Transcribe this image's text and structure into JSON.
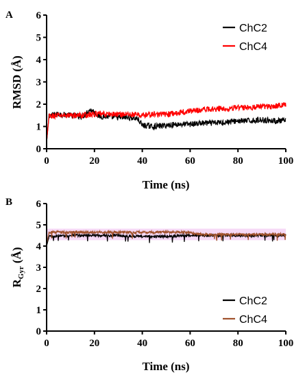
{
  "chart_data": [
    {
      "panel": "A",
      "type": "line",
      "xlabel": "Time (ns)",
      "ylabel": "RMSD (Å)",
      "xlim": [
        0,
        100
      ],
      "ylim": [
        0,
        6
      ],
      "xticks": [
        "0",
        "20",
        "40",
        "60",
        "80",
        "100"
      ],
      "yticks": [
        "0",
        "1",
        "2",
        "3",
        "4",
        "5",
        "6"
      ],
      "legend_position": "top-right",
      "series": [
        {
          "name": "ChC2",
          "color": "#000000",
          "x": [
            0,
            1,
            5,
            10,
            15,
            18,
            20,
            22,
            25,
            30,
            35,
            38,
            40,
            45,
            50,
            55,
            60,
            65,
            70,
            75,
            80,
            85,
            90,
            95,
            100
          ],
          "y": [
            0.3,
            1.5,
            1.55,
            1.5,
            1.45,
            1.75,
            1.65,
            1.45,
            1.45,
            1.4,
            1.4,
            1.35,
            1.05,
            1.0,
            1.05,
            1.1,
            1.1,
            1.15,
            1.15,
            1.2,
            1.25,
            1.25,
            1.3,
            1.25,
            1.25
          ]
        },
        {
          "name": "ChC4",
          "color": "#ff0000",
          "x": [
            0,
            1,
            5,
            10,
            15,
            20,
            25,
            30,
            35,
            40,
            45,
            50,
            55,
            60,
            65,
            70,
            75,
            80,
            85,
            90,
            95,
            100
          ],
          "y": [
            0.3,
            1.45,
            1.5,
            1.5,
            1.5,
            1.55,
            1.55,
            1.55,
            1.55,
            1.5,
            1.55,
            1.55,
            1.6,
            1.7,
            1.75,
            1.8,
            1.8,
            1.85,
            1.85,
            1.9,
            1.9,
            2.0
          ]
        }
      ]
    },
    {
      "panel": "B",
      "type": "line",
      "xlabel": "Time (ns)",
      "ylabel": "R",
      "ylabel_subscript": "Gyr",
      "ylabel_unit": " (Å)",
      "xlim": [
        0,
        100
      ],
      "ylim": [
        0,
        6
      ],
      "xticks": [
        "0",
        "20",
        "40",
        "60",
        "80",
        "100"
      ],
      "yticks": [
        "0",
        "1",
        "2",
        "3",
        "4",
        "5",
        "6"
      ],
      "legend_position": "center-right",
      "series": [
        {
          "name": "ChC2",
          "color": "#000000",
          "x": [
            0,
            1,
            10,
            20,
            30,
            40,
            50,
            60,
            63,
            70,
            80,
            90,
            100
          ],
          "y": [
            4.0,
            4.45,
            4.5,
            4.5,
            4.5,
            4.45,
            4.45,
            4.5,
            4.5,
            4.5,
            4.5,
            4.5,
            4.5
          ]
        },
        {
          "name": "ChC4",
          "color": "#a0522d",
          "x": [
            0,
            1,
            10,
            20,
            30,
            40,
            50,
            60,
            63,
            70,
            80,
            90,
            100
          ],
          "y": [
            4.1,
            4.65,
            4.65,
            4.65,
            4.65,
            4.65,
            4.65,
            4.65,
            4.55,
            4.55,
            4.55,
            4.55,
            4.55
          ]
        }
      ]
    }
  ]
}
